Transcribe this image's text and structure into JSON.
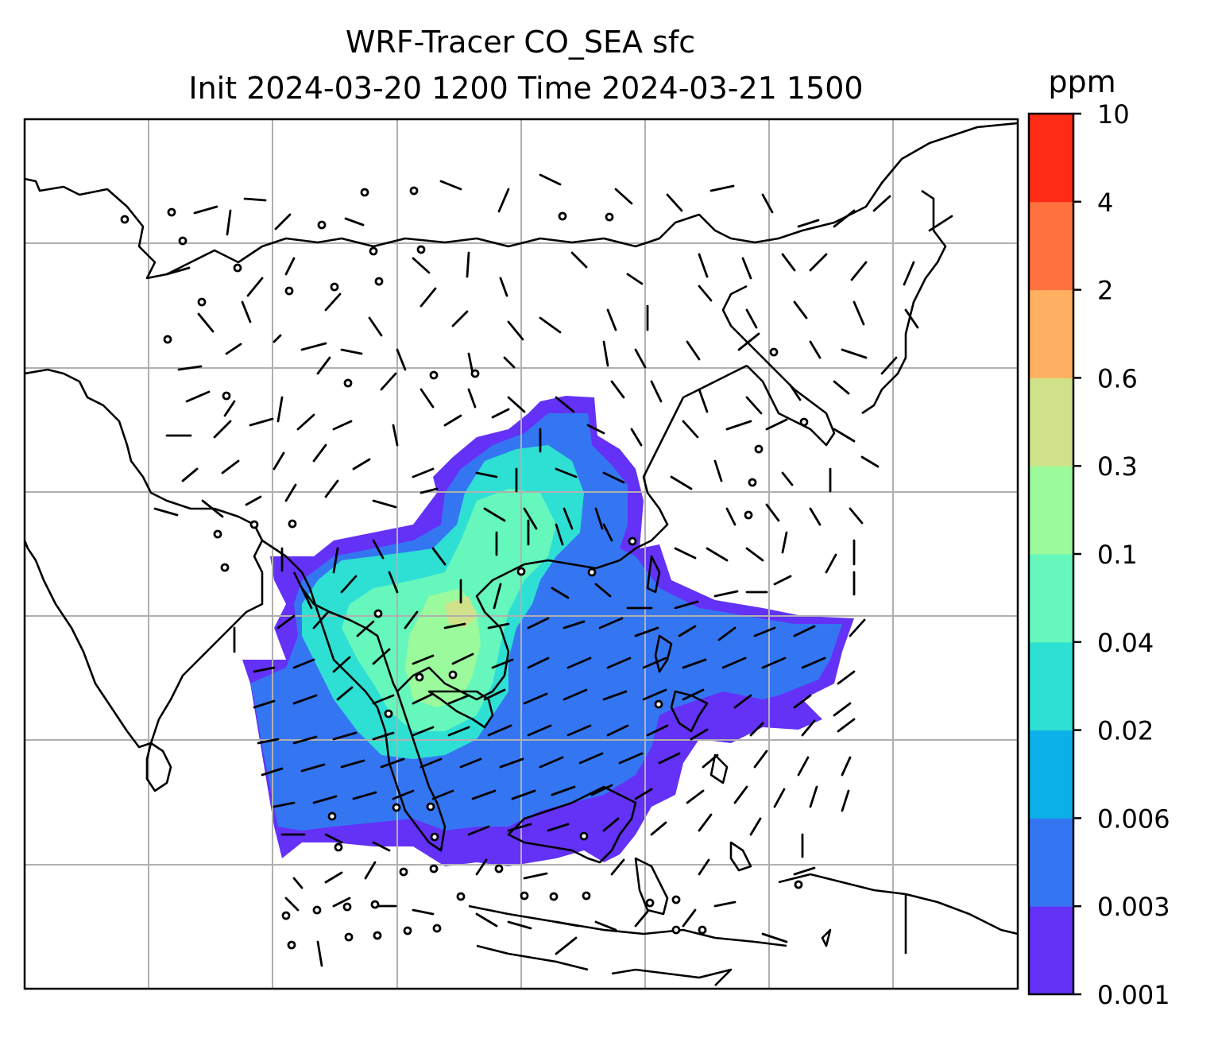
{
  "title": {
    "line1": "WRF-Tracer CO_SEA sfc",
    "line2": "Init 2024-03-20 1200 Time 2024-03-21 1500"
  },
  "colorbar": {
    "unit": "ppm",
    "levels": [
      "0.001",
      "0.003",
      "0.006",
      "0.02",
      "0.04",
      "0.1",
      "0.3",
      "0.6",
      "2",
      "4",
      "10"
    ],
    "colors": [
      "#6431f6",
      "#3476f2",
      "#0cb0e8",
      "#2edfd4",
      "#66f7bd",
      "#9bfa9c",
      "#cfe28a",
      "#ffb060",
      "#ff7240",
      "#ff2b17"
    ]
  },
  "map": {
    "gridlines": true,
    "field_colors": {
      "lowest": "#6431f6",
      "low": "#3476f2",
      "mid": "#2edfd4",
      "high": "#66f7bd",
      "higher": "#9bfa9c",
      "peak": "#cfe28a"
    },
    "coastline_color": "#000000",
    "barb_color": "#000000"
  }
}
